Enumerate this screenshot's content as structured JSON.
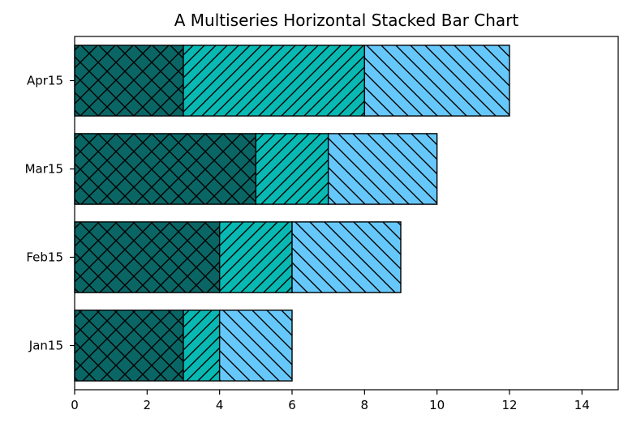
{
  "chart_data": {
    "type": "bar",
    "orientation": "horizontal",
    "stacked": true,
    "title": "A Multiseries Horizontal Stacked Bar Chart",
    "xlabel": "",
    "ylabel": "",
    "categories": [
      "Jan15",
      "Feb15",
      "Mar15",
      "Apr15"
    ],
    "series": [
      {
        "values": [
          3,
          4,
          5,
          3
        ],
        "color": "#0a6665",
        "hatch": "cross"
      },
      {
        "values": [
          1,
          2,
          2,
          5
        ],
        "color": "#08b9b3",
        "hatch": "forward-diagonal"
      },
      {
        "values": [
          2,
          3,
          3,
          4
        ],
        "color": "#66c8fa",
        "hatch": "back-diagonal"
      }
    ],
    "xlim": [
      0,
      15
    ],
    "xticks": [
      0,
      2,
      4,
      6,
      8,
      10,
      12,
      14
    ],
    "grid": false,
    "legend": "none"
  }
}
